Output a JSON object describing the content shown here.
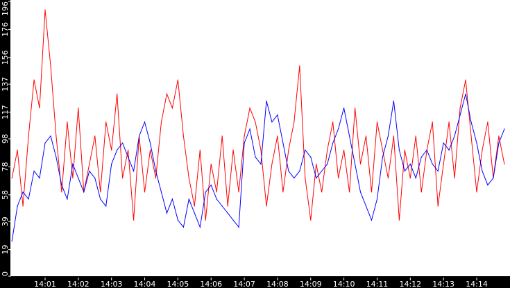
{
  "chart_data": {
    "type": "line",
    "title": "",
    "xlabel": "",
    "ylabel": "",
    "ylim": [
      0,
      196
    ],
    "y_ticks": [
      "0",
      "19",
      "39",
      "58",
      "78",
      "98",
      "117",
      "137",
      "156",
      "176",
      "196"
    ],
    "x_ticks": [
      "14:01",
      "14:02",
      "14:03",
      "14:04",
      "14:05",
      "14:06",
      "14:07",
      "14:08",
      "14:09",
      "14:10",
      "14:11",
      "14:12",
      "14:13",
      "14:14"
    ],
    "grid": false,
    "legend": "none",
    "background": "#ffffff",
    "x": [
      "14:00:00",
      "14:00:10",
      "14:00:20",
      "14:00:30",
      "14:00:40",
      "14:00:50",
      "14:01:00",
      "14:01:10",
      "14:01:20",
      "14:01:30",
      "14:01:40",
      "14:01:50",
      "14:02:00",
      "14:02:10",
      "14:02:20",
      "14:02:30",
      "14:02:40",
      "14:02:50",
      "14:03:00",
      "14:03:10",
      "14:03:20",
      "14:03:30",
      "14:03:40",
      "14:03:50",
      "14:04:00",
      "14:04:10",
      "14:04:20",
      "14:04:30",
      "14:04:40",
      "14:04:50",
      "14:05:00",
      "14:05:10",
      "14:05:20",
      "14:05:30",
      "14:05:40",
      "14:05:50",
      "14:06:00",
      "14:06:10",
      "14:06:20",
      "14:06:30",
      "14:06:40",
      "14:06:50",
      "14:07:00",
      "14:07:10",
      "14:07:20",
      "14:07:30",
      "14:07:40",
      "14:07:50",
      "14:08:00",
      "14:08:10",
      "14:08:20",
      "14:08:30",
      "14:08:40",
      "14:08:50",
      "14:09:00",
      "14:09:10",
      "14:09:20",
      "14:09:30",
      "14:09:40",
      "14:09:50",
      "14:10:00",
      "14:10:10",
      "14:10:20",
      "14:10:30",
      "14:10:40",
      "14:10:50",
      "14:11:00",
      "14:11:10",
      "14:11:20",
      "14:11:30",
      "14:11:40",
      "14:11:50",
      "14:12:00",
      "14:12:10",
      "14:12:20",
      "14:12:30",
      "14:12:40",
      "14:12:50",
      "14:13:00",
      "14:13:10",
      "14:13:20",
      "14:13:30",
      "14:13:40",
      "14:13:50",
      "14:14:00",
      "14:14:10",
      "14:14:20",
      "14:14:30",
      "14:14:40",
      "14:14:50"
    ],
    "series": [
      {
        "color": "#ff0000",
        "values": [
          70,
          90,
          50,
          100,
          140,
          120,
          190,
          150,
          100,
          60,
          110,
          70,
          120,
          60,
          80,
          100,
          60,
          110,
          90,
          130,
          70,
          90,
          40,
          100,
          60,
          90,
          70,
          110,
          130,
          120,
          140,
          100,
          70,
          50,
          90,
          40,
          80,
          60,
          100,
          50,
          90,
          60,
          100,
          120,
          110,
          90,
          50,
          80,
          100,
          60,
          90,
          110,
          150,
          70,
          40,
          80,
          60,
          90,
          110,
          70,
          90,
          60,
          120,
          80,
          100,
          60,
          110,
          90,
          70,
          100,
          40,
          90,
          70,
          100,
          60,
          90,
          110,
          50,
          80,
          110,
          70,
          120,
          140,
          100,
          60,
          90,
          110,
          70,
          100,
          80
        ]
      },
      {
        "color": "#0000ff",
        "values": [
          25,
          50,
          60,
          55,
          75,
          70,
          95,
          100,
          85,
          65,
          55,
          80,
          70,
          60,
          75,
          70,
          55,
          50,
          80,
          90,
          95,
          85,
          75,
          100,
          110,
          95,
          75,
          60,
          45,
          55,
          40,
          35,
          55,
          45,
          35,
          60,
          65,
          55,
          50,
          45,
          40,
          35,
          95,
          105,
          85,
          80,
          125,
          110,
          115,
          95,
          75,
          70,
          75,
          90,
          85,
          70,
          75,
          80,
          95,
          105,
          120,
          100,
          80,
          60,
          50,
          40,
          55,
          85,
          100,
          125,
          90,
          75,
          80,
          70,
          85,
          90,
          80,
          75,
          95,
          90,
          100,
          115,
          130,
          110,
          95,
          75,
          65,
          70,
          95,
          105
        ]
      }
    ]
  }
}
